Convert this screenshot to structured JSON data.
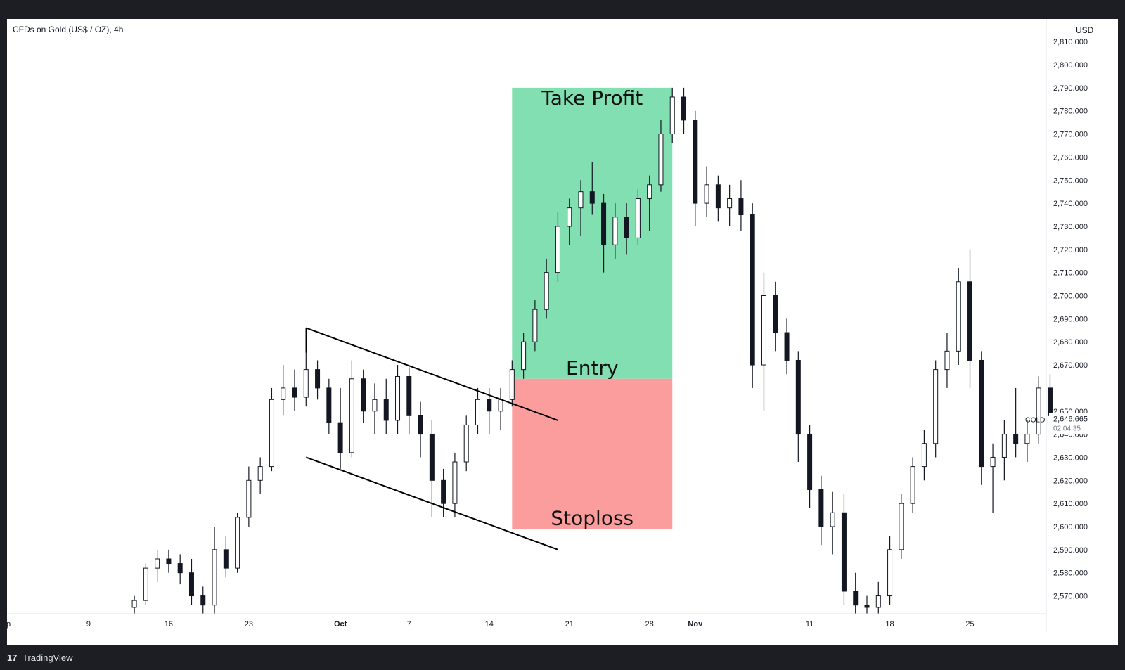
{
  "header": {
    "symbol": "CFDs on Gold (US$ / OZ), 4h",
    "currency": "USD"
  },
  "footer": {
    "logo_text": "17",
    "brand": "TradingView"
  },
  "colors": {
    "profit": "#81dfb1",
    "loss": "#fc9d9d",
    "candle": "#131722",
    "line": "#000000"
  },
  "chart_data": {
    "type": "candlestick",
    "title": "",
    "yaxis_labels": [
      "2,810.000",
      "2,800.000",
      "2,790.000",
      "2,780.000",
      "2,770.000",
      "2,760.000",
      "2,750.000",
      "2,740.000",
      "2,730.000",
      "2,720.000",
      "2,710.000",
      "2,700.000",
      "2,690.000",
      "2,680.000",
      "2,670.000",
      "2,650.000",
      "2,640.000",
      "2,630.000",
      "2,620.000",
      "2,610.000",
      "2,600.000",
      "2,590.000",
      "2,580.000",
      "2,570.000"
    ],
    "yaxis_values": [
      2810,
      2800,
      2790,
      2780,
      2770,
      2760,
      2750,
      2740,
      2730,
      2720,
      2710,
      2700,
      2690,
      2680,
      2670,
      2650,
      2640,
      2630,
      2620,
      2610,
      2600,
      2590,
      2580,
      2570
    ],
    "xaxis_labels": [
      "p",
      "9",
      "16",
      "23",
      "Oct",
      "7",
      "14",
      "21",
      "28",
      "Nov",
      "11",
      "18",
      "25"
    ],
    "xaxis_dates": [
      "2024-09-02",
      "2024-09-09",
      "2024-09-16",
      "2024-09-23",
      "2024-10-01",
      "2024-10-07",
      "2024-10-14",
      "2024-10-21",
      "2024-10-28",
      "2024-11-01",
      "2024-11-11",
      "2024-11-18",
      "2024-11-25"
    ],
    "ylim": [
      2563,
      2810
    ],
    "price_tag": {
      "symbol": "GOLD",
      "price": "2,646.665",
      "countdown": "02:04:35"
    },
    "trade_setup": {
      "take_profit": {
        "label": "Take Profit",
        "price": 2790
      },
      "entry": {
        "label": "Entry",
        "price": 2664
      },
      "stoploss": {
        "label": "Stoploss",
        "price": 2599
      },
      "start_date": "2024-10-16",
      "end_date": "2024-10-30"
    },
    "channel": {
      "upper": [
        [
          "2024-09-28",
          2686
        ],
        [
          "2024-10-20",
          2646
        ]
      ],
      "lower": [
        [
          "2024-09-28",
          2630
        ],
        [
          "2024-10-20",
          2590
        ]
      ]
    },
    "ohlc": [
      [
        "2024-09-13",
        2565,
        2570,
        2560,
        2568
      ],
      [
        "2024-09-14",
        2568,
        2584,
        2566,
        2582
      ],
      [
        "2024-09-15",
        2582,
        2590,
        2576,
        2586
      ],
      [
        "2024-09-16",
        2586,
        2590,
        2580,
        2584
      ],
      [
        "2024-09-17",
        2584,
        2588,
        2575,
        2580
      ],
      [
        "2024-09-18",
        2580,
        2586,
        2566,
        2570
      ],
      [
        "2024-09-19",
        2570,
        2574,
        2560,
        2566
      ],
      [
        "2024-09-20",
        2566,
        2600,
        2562,
        2590
      ],
      [
        "2024-09-21",
        2590,
        2596,
        2578,
        2582
      ],
      [
        "2024-09-22",
        2582,
        2606,
        2580,
        2604
      ],
      [
        "2024-09-23",
        2604,
        2626,
        2600,
        2620
      ],
      [
        "2024-09-24",
        2620,
        2630,
        2614,
        2626
      ],
      [
        "2024-09-25",
        2626,
        2660,
        2624,
        2655
      ],
      [
        "2024-09-26",
        2655,
        2670,
        2648,
        2660
      ],
      [
        "2024-09-27",
        2660,
        2668,
        2650,
        2656
      ],
      [
        "2024-09-28",
        2656,
        2676,
        2652,
        2668
      ],
      [
        "2024-09-29",
        2668,
        2672,
        2655,
        2660
      ],
      [
        "2024-09-30",
        2660,
        2664,
        2640,
        2645
      ],
      [
        "2024-10-01",
        2645,
        2660,
        2625,
        2632
      ],
      [
        "2024-10-02",
        2632,
        2672,
        2630,
        2664
      ],
      [
        "2024-10-03",
        2664,
        2668,
        2645,
        2650
      ],
      [
        "2024-10-04",
        2650,
        2662,
        2640,
        2655
      ],
      [
        "2024-10-05",
        2655,
        2664,
        2640,
        2646
      ],
      [
        "2024-10-06",
        2646,
        2670,
        2640,
        2665
      ],
      [
        "2024-10-07",
        2665,
        2669,
        2640,
        2648
      ],
      [
        "2024-10-08",
        2648,
        2654,
        2630,
        2640
      ],
      [
        "2024-10-09",
        2640,
        2646,
        2604,
        2620
      ],
      [
        "2024-10-10",
        2620,
        2625,
        2604,
        2610
      ],
      [
        "2024-10-11",
        2610,
        2632,
        2604,
        2628
      ],
      [
        "2024-10-12",
        2628,
        2648,
        2624,
        2644
      ],
      [
        "2024-10-13",
        2644,
        2660,
        2640,
        2655
      ],
      [
        "2024-10-14",
        2655,
        2660,
        2640,
        2650
      ],
      [
        "2024-10-15",
        2650,
        2660,
        2642,
        2655
      ],
      [
        "2024-10-16",
        2655,
        2672,
        2652,
        2668
      ],
      [
        "2024-10-17",
        2668,
        2684,
        2664,
        2680
      ],
      [
        "2024-10-18",
        2680,
        2698,
        2676,
        2694
      ],
      [
        "2024-10-19",
        2694,
        2716,
        2690,
        2710
      ],
      [
        "2024-10-20",
        2710,
        2736,
        2706,
        2730
      ],
      [
        "2024-10-21",
        2730,
        2742,
        2722,
        2738
      ],
      [
        "2024-10-22",
        2738,
        2750,
        2726,
        2745
      ],
      [
        "2024-10-23",
        2745,
        2758,
        2735,
        2740
      ],
      [
        "2024-10-24",
        2740,
        2744,
        2710,
        2722
      ],
      [
        "2024-10-25",
        2722,
        2740,
        2716,
        2734
      ],
      [
        "2024-10-26",
        2734,
        2740,
        2718,
        2725
      ],
      [
        "2024-10-27",
        2725,
        2746,
        2722,
        2742
      ],
      [
        "2024-10-28",
        2742,
        2752,
        2728,
        2748
      ],
      [
        "2024-10-29",
        2748,
        2776,
        2745,
        2770
      ],
      [
        "2024-10-30",
        2770,
        2790,
        2766,
        2786
      ],
      [
        "2024-10-31",
        2786,
        2790,
        2770,
        2776
      ],
      [
        "2024-11-01",
        2776,
        2780,
        2730,
        2740
      ],
      [
        "2024-11-02",
        2740,
        2756,
        2734,
        2748
      ],
      [
        "2024-11-03",
        2748,
        2752,
        2732,
        2738
      ],
      [
        "2024-11-04",
        2738,
        2748,
        2730,
        2742
      ],
      [
        "2024-11-05",
        2742,
        2750,
        2728,
        2735
      ],
      [
        "2024-11-06",
        2735,
        2740,
        2660,
        2670
      ],
      [
        "2024-11-07",
        2670,
        2710,
        2650,
        2700
      ],
      [
        "2024-11-08",
        2700,
        2706,
        2676,
        2684
      ],
      [
        "2024-11-09",
        2684,
        2690,
        2666,
        2672
      ],
      [
        "2024-11-10",
        2672,
        2676,
        2628,
        2640
      ],
      [
        "2024-11-11",
        2640,
        2644,
        2608,
        2616
      ],
      [
        "2024-11-12",
        2616,
        2622,
        2592,
        2600
      ],
      [
        "2024-11-13",
        2600,
        2615,
        2588,
        2606
      ],
      [
        "2024-11-14",
        2606,
        2614,
        2566,
        2572
      ],
      [
        "2024-11-15",
        2572,
        2580,
        2560,
        2566
      ],
      [
        "2024-11-16",
        2566,
        2570,
        2560,
        2565
      ],
      [
        "2024-11-17",
        2565,
        2576,
        2560,
        2570
      ],
      [
        "2024-11-18",
        2570,
        2596,
        2566,
        2590
      ],
      [
        "2024-11-19",
        2590,
        2614,
        2586,
        2610
      ],
      [
        "2024-11-20",
        2610,
        2630,
        2606,
        2626
      ],
      [
        "2024-11-21",
        2626,
        2642,
        2620,
        2636
      ],
      [
        "2024-11-22",
        2636,
        2672,
        2630,
        2668
      ],
      [
        "2024-11-23",
        2668,
        2684,
        2660,
        2676
      ],
      [
        "2024-11-24",
        2676,
        2712,
        2670,
        2706
      ],
      [
        "2024-11-25",
        2706,
        2720,
        2660,
        2672
      ],
      [
        "2024-11-26",
        2672,
        2676,
        2618,
        2626
      ],
      [
        "2024-11-27",
        2626,
        2636,
        2606,
        2630
      ],
      [
        "2024-11-28",
        2630,
        2646,
        2620,
        2640
      ],
      [
        "2024-11-29",
        2640,
        2660,
        2630,
        2636
      ],
      [
        "2024-11-30",
        2636,
        2646,
        2628,
        2640
      ],
      [
        "2024-12-01",
        2640,
        2665,
        2636,
        2660
      ],
      [
        "2024-12-02",
        2660,
        2666,
        2644,
        2648
      ]
    ]
  }
}
